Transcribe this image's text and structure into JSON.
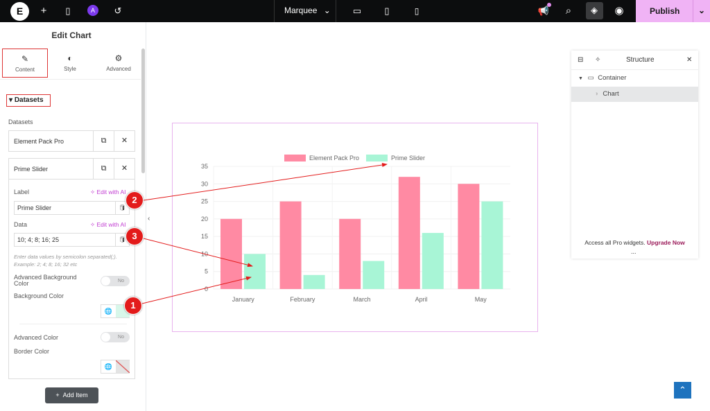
{
  "topbar": {
    "site_name": "Marquee",
    "publish_label": "Publish",
    "ai_badge": "A"
  },
  "panel": {
    "title": "Edit Chart",
    "tabs": [
      {
        "label": "Content"
      },
      {
        "label": "Style"
      },
      {
        "label": "Advanced"
      }
    ],
    "section_title": "Datasets",
    "datasets_label": "Datasets",
    "datasets": [
      {
        "name": "Element Pack Pro"
      },
      {
        "name": "Prime Slider"
      }
    ],
    "item": {
      "label_label": "Label",
      "edit_ai": "Edit with AI",
      "label_value": "Prime Slider",
      "data_label": "Data",
      "data_value": "10; 4; 8; 16; 25",
      "hint": "Enter data values by semicolon separated(;). Example: 2; 4; 8; 16; 32 etc",
      "adv_bg_label": "Advanced Background Color",
      "bg_color_label": "Background Color",
      "adv_color_label": "Advanced Color",
      "border_color_label": "Border Color",
      "toggle_off": "No"
    },
    "add_item": "Add Item"
  },
  "structure": {
    "title": "Structure",
    "items": [
      {
        "label": "Container"
      },
      {
        "label": "Chart"
      }
    ],
    "promo_text": "Access all Pro widgets.",
    "promo_link": "Upgrade Now",
    "more": "..."
  },
  "annotations": [
    "1",
    "2",
    "3"
  ],
  "chart_data": {
    "type": "bar",
    "categories": [
      "January",
      "February",
      "March",
      "April",
      "May"
    ],
    "series": [
      {
        "name": "Element Pack Pro",
        "values": [
          20,
          25,
          20,
          32,
          30
        ],
        "color": "#ff8aa3"
      },
      {
        "name": "Prime Slider",
        "values": [
          10,
          4,
          8,
          16,
          25
        ],
        "color": "#a8f5d6"
      }
    ],
    "ylim": [
      0,
      35
    ],
    "yticks": [
      0,
      5,
      10,
      15,
      20,
      25,
      30,
      35
    ],
    "grid": true,
    "legend": "top"
  }
}
